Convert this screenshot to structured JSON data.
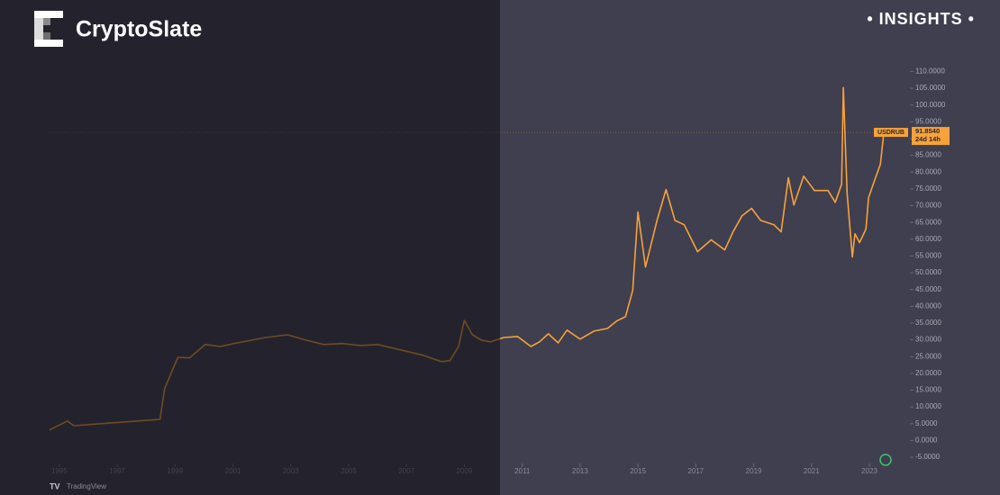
{
  "brand": "CryptoSlate",
  "badge": "• INSIGHTS •",
  "watermark": "TradingView",
  "chart_data": {
    "type": "line",
    "symbol": "USDRUB",
    "price_label": "91.8540",
    "countdown": "24d 14h",
    "color": "#f7a23b",
    "x": [
      1994.66,
      1995.28,
      1995.5,
      1998.48,
      1998.64,
      1998.86,
      1999.1,
      1999.5,
      2000.04,
      2000.57,
      2001.04,
      2002.13,
      2002.9,
      2003.53,
      2004.15,
      2004.77,
      2005.4,
      2006.0,
      2006.64,
      2007.57,
      2008.2,
      2008.5,
      2008.8,
      2009.0,
      2009.28,
      2009.6,
      2009.9,
      2010.37,
      2010.84,
      2011.3,
      2011.6,
      2011.9,
      2012.24,
      2012.55,
      2013.0,
      2013.48,
      2013.95,
      2014.26,
      2014.57,
      2014.82,
      2015.0,
      2015.26,
      2015.66,
      2015.97,
      2016.28,
      2016.6,
      2017.06,
      2017.53,
      2018.0,
      2018.3,
      2018.6,
      2018.93,
      2019.24,
      2019.7,
      2019.95,
      2020.2,
      2020.39,
      2020.73,
      2021.1,
      2021.57,
      2021.82,
      2022.04,
      2022.1,
      2022.23,
      2022.41,
      2022.5,
      2022.66,
      2022.88,
      2022.97,
      2023.19,
      2023.38,
      2023.5
    ],
    "values": [
      3.1,
      5.8,
      4.4,
      6.3,
      15.4,
      20,
      24.8,
      24.6,
      28.6,
      28,
      28.9,
      30.7,
      31.5,
      29.9,
      28.6,
      28.9,
      28.3,
      28.6,
      27.3,
      25.4,
      23.5,
      23.8,
      28,
      35.8,
      31.5,
      29.9,
      29.4,
      30.7,
      31,
      28,
      29.4,
      31.8,
      29.1,
      32.9,
      30.2,
      32.6,
      33.4,
      35.6,
      36.9,
      44.7,
      68.1,
      51.7,
      65.6,
      74.8,
      65.6,
      64.3,
      56.3,
      59.8,
      56.8,
      62.4,
      67,
      69.2,
      65.6,
      64.3,
      62.2,
      78.3,
      70.2,
      78.8,
      74.5,
      74.5,
      71,
      76.4,
      105.2,
      73.7,
      54.7,
      61.6,
      59,
      63,
      72.4,
      77.8,
      82.3,
      91.854
    ],
    "xlim": [
      1994.6,
      2024.4
    ],
    "xticks": [
      1995,
      1997,
      1999,
      2001,
      2003,
      2005,
      2007,
      2009,
      2011,
      2013,
      2015,
      2017,
      2019,
      2021,
      2023
    ],
    "ylim": [
      -5.8,
      112
    ],
    "yticks": [
      {
        "value": 110,
        "label": "110.0000"
      },
      {
        "value": 105,
        "label": "105.0000"
      },
      {
        "value": 100,
        "label": "100.0000"
      },
      {
        "value": 95,
        "label": "95.0000"
      },
      {
        "value": 90,
        "label": "90.0000"
      },
      {
        "value": 85,
        "label": "85.0000"
      },
      {
        "value": 80,
        "label": "80.0000"
      },
      {
        "value": 75,
        "label": "75.0000"
      },
      {
        "value": 70,
        "label": "70.0000"
      },
      {
        "value": 65,
        "label": "65.0000"
      },
      {
        "value": 60,
        "label": "60.0000"
      },
      {
        "value": 55,
        "label": "55.0000"
      },
      {
        "value": 50,
        "label": "50.0000"
      },
      {
        "value": 45,
        "label": "45.0000"
      },
      {
        "value": 40,
        "label": "40.0000"
      },
      {
        "value": 35,
        "label": "35.0000"
      },
      {
        "value": 30,
        "label": "30.0000"
      },
      {
        "value": 25,
        "label": "25.0000"
      },
      {
        "value": 20,
        "label": "20.0000"
      },
      {
        "value": 15,
        "label": "15.0000"
      },
      {
        "value": 10,
        "label": "10.0000"
      },
      {
        "value": 5,
        "label": "5.0000"
      },
      {
        "value": 0,
        "label": "0.0000"
      },
      {
        "value": -5,
        "label": "-5.0000"
      }
    ]
  }
}
